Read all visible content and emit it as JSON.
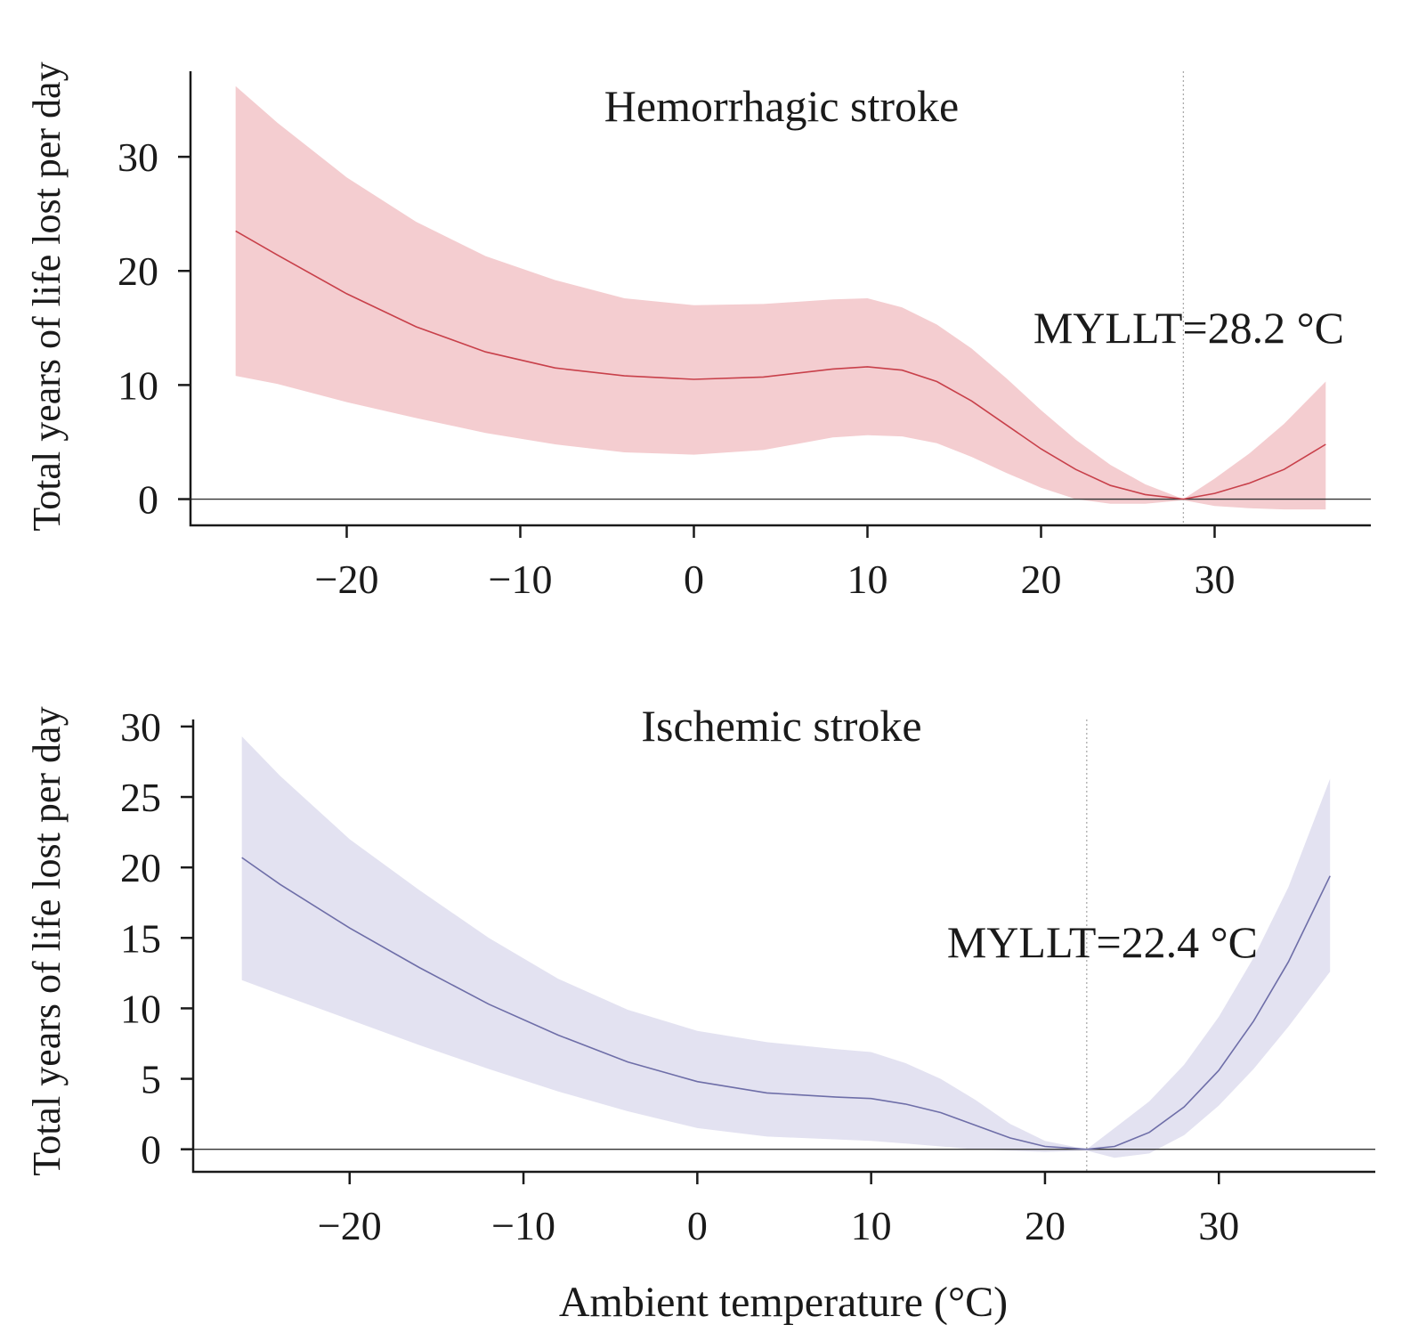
{
  "chart_data": [
    {
      "type": "line",
      "title": "Hemorrhagic stroke",
      "xlabel": "",
      "ylabel": "Total years of life lost per day",
      "xlim": [
        -29,
        39
      ],
      "ylim": [
        -2.3,
        37.5
      ],
      "xticks": [
        -20,
        -10,
        0,
        10,
        20,
        30
      ],
      "yticks": [
        0,
        10,
        20,
        30
      ],
      "xtick_labels": [
        "−20",
        "−10",
        "0",
        "10",
        "20",
        "30"
      ],
      "ytick_labels": [
        "0",
        "10",
        "20",
        "30"
      ],
      "reference_x": 28.2,
      "annotation": "MYLLT=28.2 °C",
      "colors": {
        "band": "#f4cdd0",
        "line": "#c8404a"
      },
      "series": [
        {
          "x": [
            -26.4,
            -24,
            -20,
            -16,
            -12,
            -8,
            -4,
            0,
            4,
            8,
            10,
            12,
            14,
            16,
            18,
            20,
            22,
            24,
            26,
            28.2,
            30,
            32,
            34,
            36.4
          ],
          "y": [
            23.5,
            21.4,
            18.0,
            15.1,
            12.9,
            11.5,
            10.8,
            10.5,
            10.7,
            11.4,
            11.6,
            11.3,
            10.3,
            8.6,
            6.5,
            4.4,
            2.6,
            1.2,
            0.4,
            0.0,
            0.5,
            1.4,
            2.6,
            4.8
          ],
          "lower": [
            10.8,
            10.1,
            8.5,
            7.1,
            5.8,
            4.8,
            4.1,
            3.9,
            4.3,
            5.4,
            5.6,
            5.5,
            4.9,
            3.7,
            2.3,
            1.0,
            0.0,
            -0.4,
            -0.4,
            -0.1,
            -0.6,
            -0.8,
            -0.9,
            -0.9
          ],
          "upper": [
            36.2,
            33.0,
            28.2,
            24.3,
            21.3,
            19.2,
            17.6,
            17.0,
            17.1,
            17.5,
            17.6,
            16.8,
            15.3,
            13.2,
            10.6,
            7.8,
            5.2,
            3.0,
            1.3,
            0.0,
            1.8,
            4.0,
            6.6,
            10.3
          ]
        }
      ]
    },
    {
      "type": "line",
      "title": "Ischemic stroke",
      "xlabel": "Ambient temperature (°C)",
      "ylabel": "Total years of life lost per day",
      "xlim": [
        -29,
        39
      ],
      "ylim": [
        -1.6,
        30.5
      ],
      "xticks": [
        -20,
        -10,
        0,
        10,
        20,
        30
      ],
      "yticks": [
        0,
        5,
        10,
        15,
        20,
        25,
        30
      ],
      "xtick_labels": [
        "−20",
        "−10",
        "0",
        "10",
        "20",
        "30"
      ],
      "ytick_labels": [
        "0",
        "5",
        "10",
        "15",
        "20",
        "25",
        "30"
      ],
      "reference_x": 22.4,
      "annotation": "MYLLT=22.4 °C",
      "colors": {
        "band": "#e3e2f1",
        "line": "#6e6ea8"
      },
      "series": [
        {
          "x": [
            -26.2,
            -24,
            -20,
            -16,
            -12,
            -8,
            -4,
            0,
            4,
            8,
            10,
            12,
            14,
            16,
            18,
            20,
            22.4,
            24,
            26,
            28,
            30,
            32,
            34,
            36.4
          ],
          "y": [
            20.7,
            18.8,
            15.7,
            12.9,
            10.3,
            8.1,
            6.2,
            4.8,
            4.0,
            3.7,
            3.6,
            3.2,
            2.6,
            1.7,
            0.8,
            0.2,
            0.0,
            0.2,
            1.2,
            3.0,
            5.6,
            9.1,
            13.3,
            19.4
          ],
          "lower": [
            12.0,
            11.0,
            9.2,
            7.4,
            5.7,
            4.1,
            2.7,
            1.5,
            0.9,
            0.7,
            0.6,
            0.4,
            0.2,
            0.0,
            -0.1,
            -0.2,
            -0.1,
            -0.6,
            -0.3,
            1.0,
            3.1,
            5.7,
            8.7,
            12.6
          ],
          "upper": [
            29.3,
            26.5,
            22.0,
            18.4,
            15.0,
            12.1,
            9.9,
            8.4,
            7.6,
            7.1,
            6.9,
            6.1,
            5.0,
            3.5,
            1.8,
            0.6,
            0.0,
            1.5,
            3.4,
            6.0,
            9.4,
            13.6,
            18.6,
            26.3
          ]
        }
      ]
    }
  ]
}
